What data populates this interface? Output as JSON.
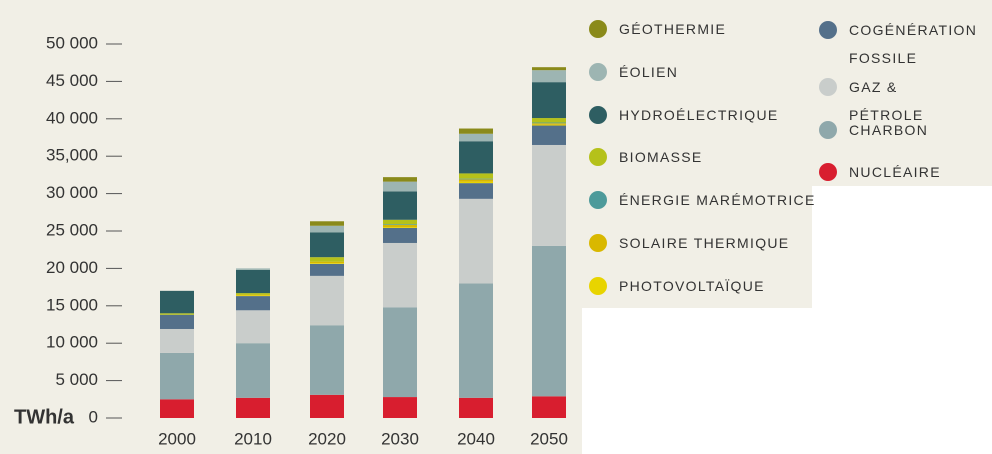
{
  "chart_data": {
    "type": "bar",
    "stacked": true,
    "y_unit_label": "TWh/a",
    "categories": [
      "2000",
      "2010",
      "2020",
      "2030",
      "2040",
      "2050"
    ],
    "ylim": [
      0,
      50000
    ],
    "yticks": [
      0,
      {
        "value": 5000,
        "label": "5 000"
      },
      {
        "value": 10000,
        "label": "10 000"
      },
      {
        "value": 15000,
        "label": "15 000"
      },
      {
        "value": 20000,
        "label": "20 000"
      },
      {
        "value": 25000,
        "label": "25 000"
      },
      {
        "value": 30000,
        "label": "30 000"
      },
      {
        "value": 35000,
        "label": "35,000"
      },
      {
        "value": 40000,
        "label": "40 000"
      },
      {
        "value": 45000,
        "label": "45 000"
      },
      {
        "value": 50000,
        "label": "50 000"
      }
    ],
    "series": [
      {
        "name": "NUCLÉAIRE",
        "color": "#d81e2f",
        "values": [
          2500,
          2700,
          3100,
          2800,
          2700,
          2900
        ]
      },
      {
        "name": "CHARBON",
        "color": "#8fa8ab",
        "values": [
          6200,
          7300,
          9300,
          12000,
          15300,
          20100
        ]
      },
      {
        "name": "GAZ & PÉTROLE",
        "color": "#c9cdcb",
        "values": [
          3200,
          4400,
          6600,
          8600,
          11300,
          13500
        ]
      },
      {
        "name": "COGÉNÉRATION FOSSILE",
        "color": "#54708a",
        "values": [
          1900,
          1900,
          1600,
          2000,
          2100,
          2600
        ]
      },
      {
        "name": "PHOTOVOLTAÏQUE",
        "color": "#e8d400",
        "values": [
          0,
          100,
          100,
          100,
          200,
          100
        ]
      },
      {
        "name": "SOLAIRE THERMIQUE",
        "color": "#d9b800",
        "values": [
          0,
          100,
          200,
          300,
          300,
          200
        ]
      },
      {
        "name": "ÉNERGIE MARÉMOTRICE",
        "color": "#4d9a9a",
        "values": [
          0,
          0,
          0,
          100,
          100,
          100
        ]
      },
      {
        "name": "BIOMASSE",
        "color": "#b5c11a",
        "values": [
          200,
          200,
          600,
          600,
          700,
          600
        ]
      },
      {
        "name": "HYDROÉLECTRIQUE",
        "color": "#2e5e62",
        "values": [
          3000,
          3100,
          3300,
          3800,
          4300,
          4800
        ]
      },
      {
        "name": "ÉOLIEN",
        "color": "#9db5b2",
        "values": [
          0,
          200,
          900,
          1300,
          1000,
          1600
        ]
      },
      {
        "name": "GÉOTHERMIE",
        "color": "#8a8a1a",
        "values": [
          0,
          0,
          600,
          600,
          700,
          400
        ]
      }
    ]
  }
}
